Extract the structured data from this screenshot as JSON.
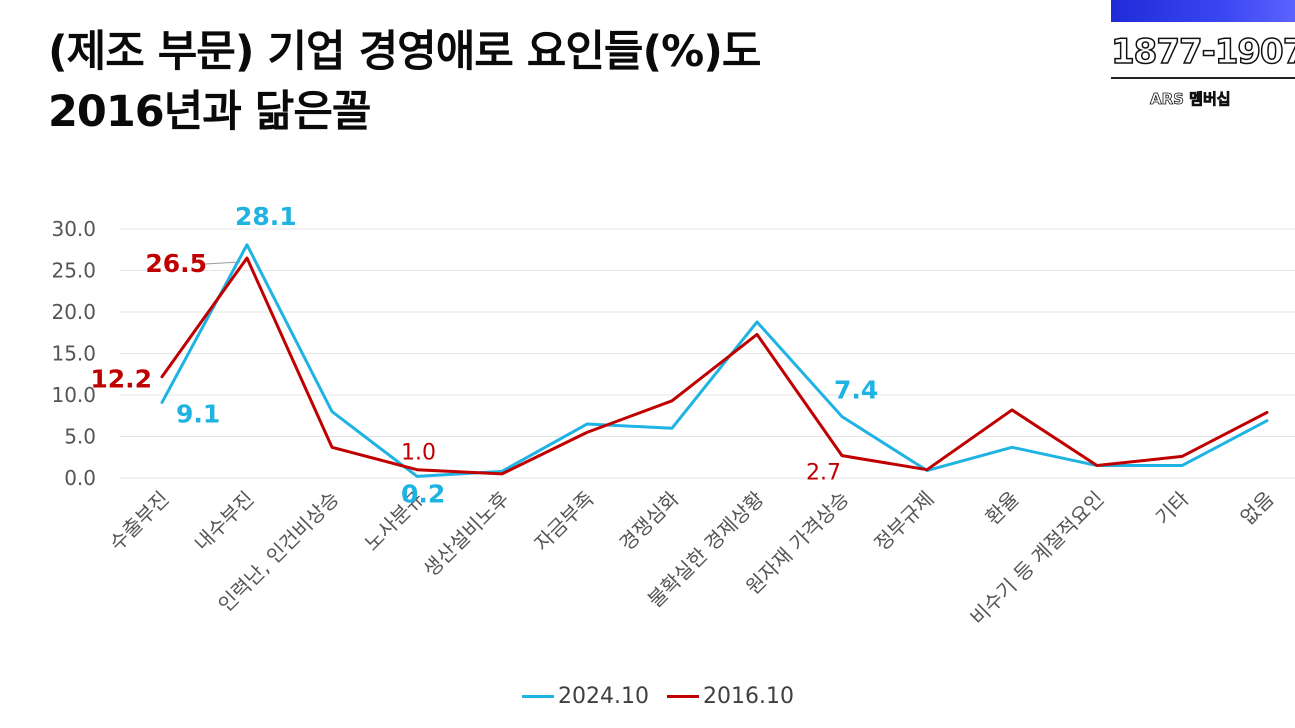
{
  "title": {
    "line1": "(제조 부문) 기업 경영애로 요인들(%)도",
    "line2": "2016년과 닮은꼴"
  },
  "brand": {
    "number": "1877-1907",
    "subtitle": "ARS 멤버십",
    "bar_color": "#2a36e6"
  },
  "chart_data": {
    "type": "line",
    "categories": [
      "수출부진",
      "내수부진",
      "인력난, 인건비상승",
      "노사분규",
      "생산설비노후",
      "자금부족",
      "경쟁심화",
      "불확실한 경제상황",
      "원자재 가격상승",
      "정부규제",
      "환율",
      "비수기 등 계절적요인",
      "기타",
      "없음"
    ],
    "ylim": [
      0,
      30
    ],
    "yticks": [
      "0.0",
      "5.0",
      "10.0",
      "15.0",
      "20.0",
      "25.0",
      "30.0"
    ],
    "grid": true,
    "legend_position": "bottom",
    "series": [
      {
        "name": "2024.10",
        "color": "#1fb3e3",
        "values": [
          9.1,
          28.1,
          8.0,
          0.2,
          0.8,
          6.5,
          6.0,
          18.8,
          7.4,
          0.9,
          3.7,
          1.5,
          1.5,
          6.9
        ]
      },
      {
        "name": "2016.10",
        "color": "#c00000",
        "values": [
          12.2,
          26.5,
          3.7,
          1.0,
          0.5,
          5.5,
          9.3,
          17.3,
          2.7,
          1.0,
          8.2,
          1.5,
          2.6,
          7.9
        ]
      }
    ],
    "annotations": [
      {
        "series": 0,
        "index": 0,
        "text": "9.1",
        "style": "bold"
      },
      {
        "series": 0,
        "index": 1,
        "text": "28.1",
        "style": "bold"
      },
      {
        "series": 0,
        "index": 3,
        "text": "0.2",
        "style": "bold"
      },
      {
        "series": 0,
        "index": 8,
        "text": "7.4",
        "style": "bold"
      },
      {
        "series": 1,
        "index": 0,
        "text": "12.2",
        "style": "bold"
      },
      {
        "series": 1,
        "index": 1,
        "text": "26.5",
        "style": "bold"
      },
      {
        "series": 1,
        "index": 3,
        "text": "1.0",
        "style": "normal"
      },
      {
        "series": 1,
        "index": 8,
        "text": "2.7",
        "style": "normal"
      }
    ]
  }
}
